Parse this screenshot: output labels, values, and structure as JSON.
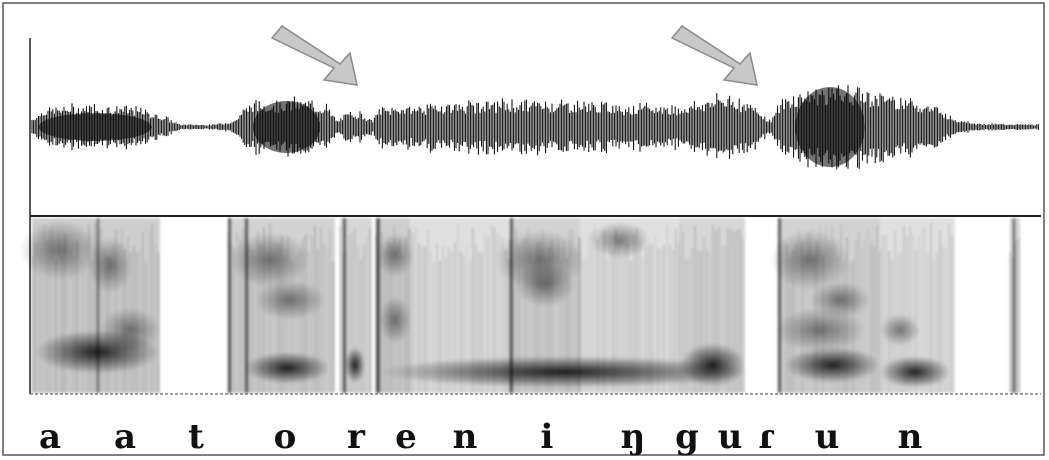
{
  "figure": {
    "panels": [
      "waveform",
      "spectrogram"
    ],
    "segments": [
      "a",
      "a",
      "t",
      "o",
      "r",
      "e",
      "n",
      "i",
      "ŋ",
      "g",
      "u",
      "ɾ",
      "u",
      "n"
    ],
    "arrows": [
      {
        "name": "arrow-1",
        "points_to": "waveform"
      },
      {
        "name": "arrow-2",
        "points_to": "waveform"
      }
    ],
    "colors": {
      "background": "#ffffff",
      "waveform": "#000000",
      "arrow_fill": "#c8c8c8",
      "arrow_stroke": "#8a8a8a",
      "frame": "#555555"
    }
  }
}
